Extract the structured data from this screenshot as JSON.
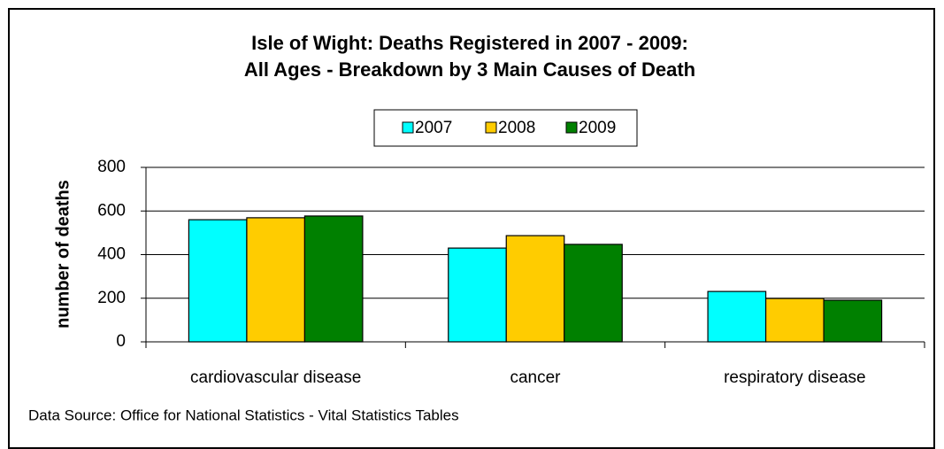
{
  "chart_data": {
    "type": "bar",
    "title": [
      "Isle of Wight: Deaths Registered in 2007 - 2009:",
      "All Ages - Breakdown by 3 Main Causes of Death"
    ],
    "y_label": "number of deaths",
    "note": "Data Source: Office for National Statistics - Vital Statistics Tables",
    "categories": [
      "cardiovascular disease",
      "cancer",
      "respiratory disease"
    ],
    "series": [
      {
        "name": "2007",
        "color": "#00ffff",
        "values": [
          560,
          430,
          231
        ]
      },
      {
        "name": "2008",
        "color": "#ffcc00",
        "values": [
          569,
          487,
          199
        ]
      },
      {
        "name": "2009",
        "color": "#008000",
        "values": [
          577,
          447,
          191
        ]
      }
    ],
    "ylim": [
      0,
      800
    ],
    "yticks": [
      0,
      200,
      400,
      600,
      800
    ],
    "grid": true,
    "legend": "top"
  }
}
